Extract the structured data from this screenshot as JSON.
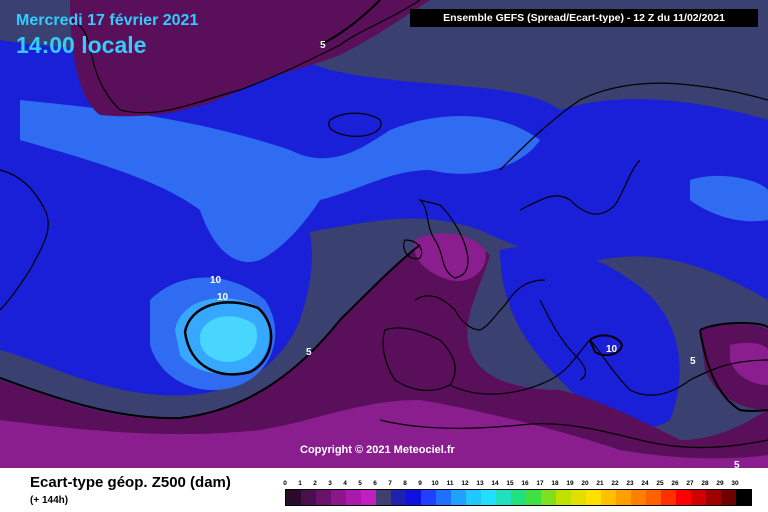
{
  "header": {
    "date": "Mercredi 17 février 2021",
    "time": "14:00 locale",
    "model": "Ensemble GEFS  (Spread/Ecart-type) - 12 Z du 11/02/2021"
  },
  "map": {
    "copyright": "Copyright © 2021 Meteociel.fr",
    "contour_labels": [
      "5",
      "10",
      "10",
      "5",
      "10",
      "5",
      "5"
    ],
    "colors": {
      "background": "#3a4070",
      "low_spread": "#5a0f5a",
      "very_low_spread": "#8a1e8e",
      "medium_spread": "#1a20d8",
      "high_spread": "#2f6cf2",
      "higher_spread": "#36a8ff",
      "highest_spread": "#48d6ff",
      "coastline": "#000000"
    }
  },
  "legend": {
    "title": "Ecart-type géop. Z500 (dam)",
    "subtitle": "(+ 144h)",
    "ticks": [
      "0",
      "1",
      "2",
      "3",
      "4",
      "5",
      "6",
      "7",
      "8",
      "9",
      "10",
      "11",
      "12",
      "13",
      "14",
      "15",
      "16",
      "17",
      "18",
      "19",
      "20",
      "21",
      "22",
      "23",
      "24",
      "25",
      "26",
      "27",
      "28",
      "29",
      "30"
    ],
    "colors": [
      "#2a0a2a",
      "#4a0e4a",
      "#6a126a",
      "#8a168a",
      "#aa1aaa",
      "#c020c0",
      "#404070",
      "#2020b0",
      "#1010e0",
      "#2040ff",
      "#2070ff",
      "#20a0ff",
      "#20c8ff",
      "#20e0ff",
      "#20e0c0",
      "#20e080",
      "#40e040",
      "#80e020",
      "#c0e000",
      "#e0e000",
      "#ffe000",
      "#ffc000",
      "#ffa000",
      "#ff8000",
      "#ff6000",
      "#ff3000",
      "#ff0000",
      "#d00000",
      "#a00000",
      "#700000",
      "#000000"
    ]
  }
}
